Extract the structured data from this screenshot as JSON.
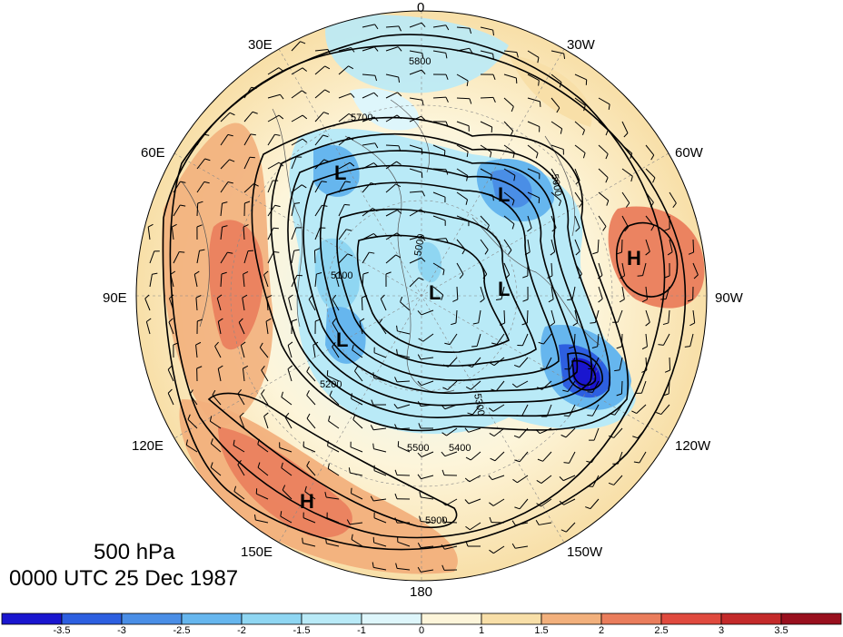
{
  "title": {
    "level": "500 hPa",
    "datetime": "0000 UTC 25 Dec 1987"
  },
  "longitude_labels": [
    "0",
    "30W",
    "60W",
    "90W",
    "120W",
    "150W",
    "180",
    "150E",
    "120E",
    "90E",
    "60E",
    "30E"
  ],
  "pressure_centers": [
    "L",
    "L",
    "L",
    "L",
    "L",
    "H",
    "H"
  ],
  "contour_labels": [
    "5800",
    "5700",
    "5600",
    "5500",
    "5400",
    "5300",
    "5200",
    "5100",
    "5000",
    "5900"
  ],
  "colorbar": {
    "ticks": [
      "-3.5",
      "-3",
      "-2.5",
      "-2",
      "-1.5",
      "-1",
      "0",
      "1",
      "1.5",
      "2",
      "2.5",
      "3",
      "3.5"
    ],
    "colors": [
      "#1a16cf",
      "#2d5fe0",
      "#4a8ee6",
      "#66b6ee",
      "#8fd6f2",
      "#b9eaf7",
      "#def6fb",
      "#fdf5da",
      "#f8dfa8",
      "#f2b07c",
      "#ea7d5c",
      "#e04a3e",
      "#c42a2a",
      "#99101e"
    ]
  }
}
